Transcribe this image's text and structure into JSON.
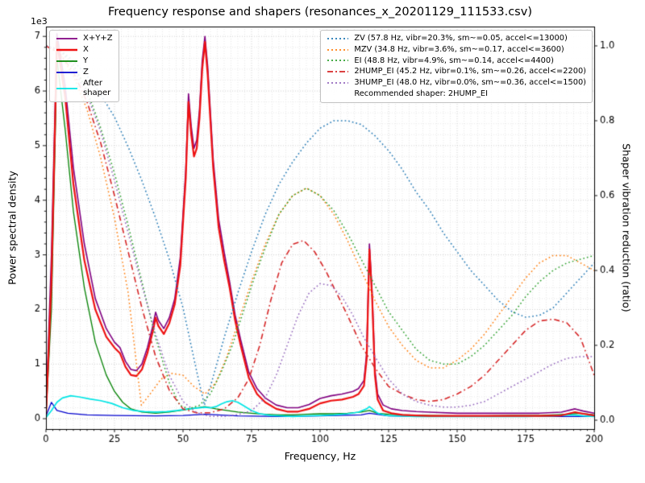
{
  "chart_data": {
    "type": "line",
    "title": "Frequency response and shapers (resonances_x_20201129_111533.csv)",
    "xlabel": "Frequency, Hz",
    "ylabel_left": "Power spectral density",
    "ylabel_right": "Shaper vibration reduction (ratio)",
    "offset_label": "1e3",
    "left_units": "1e3",
    "xlim": [
      0,
      200
    ],
    "ylim_left": [
      -0.19,
      7.18
    ],
    "ylim_right": [
      -0.0237,
      1.0516
    ],
    "x_ticks": [
      0,
      25,
      50,
      75,
      100,
      125,
      150,
      175,
      200
    ],
    "left_ticks": [
      0,
      1,
      2,
      3,
      4,
      5,
      6,
      7
    ],
    "right_ticks": [
      0.0,
      0.2,
      0.4,
      0.6,
      0.8,
      1.0
    ],
    "x_minor_step": 2.5,
    "y_minor_step": 0.2,
    "grid": true,
    "legend_note": "Recommended shaper: 2HUMP_EI",
    "psd_series": [
      {
        "name": "xyz",
        "label": "X+Y+Z",
        "color": "#800080",
        "style": "solid",
        "width": 1.6,
        "x": [
          0,
          2,
          4,
          7,
          10,
          14,
          18,
          22,
          25,
          27,
          29,
          31,
          33,
          35,
          37,
          39,
          40,
          41,
          43,
          45,
          47,
          49,
          51,
          52,
          53,
          54,
          55,
          56,
          57,
          58,
          59,
          61,
          63,
          65,
          67,
          69,
          71,
          74,
          77,
          80,
          84,
          88,
          92,
          96,
          100,
          104,
          108,
          112,
          114,
          116,
          117,
          118,
          119,
          120,
          121,
          123,
          126,
          130,
          135,
          140,
          150,
          160,
          170,
          180,
          188,
          193,
          196,
          200
        ],
        "y": [
          0.1,
          3.0,
          7.05,
          6.1,
          4.6,
          3.2,
          2.2,
          1.65,
          1.4,
          1.3,
          1.05,
          0.9,
          0.88,
          1.0,
          1.3,
          1.7,
          1.95,
          1.8,
          1.65,
          1.85,
          2.2,
          2.95,
          4.55,
          5.95,
          5.35,
          4.95,
          5.1,
          5.65,
          6.55,
          7.0,
          6.45,
          4.75,
          3.65,
          3.05,
          2.5,
          1.9,
          1.45,
          0.85,
          0.55,
          0.38,
          0.25,
          0.2,
          0.2,
          0.26,
          0.37,
          0.42,
          0.45,
          0.5,
          0.55,
          0.7,
          1.2,
          3.2,
          2.3,
          0.9,
          0.45,
          0.25,
          0.18,
          0.15,
          0.13,
          0.12,
          0.1,
          0.1,
          0.1,
          0.1,
          0.12,
          0.18,
          0.14,
          0.1
        ]
      },
      {
        "name": "x",
        "label": "X",
        "color": "#ee1111",
        "style": "solid",
        "width": 2.2,
        "x": [
          0,
          2,
          4,
          7,
          10,
          14,
          18,
          22,
          25,
          27,
          29,
          31,
          33,
          35,
          37,
          39,
          40,
          41,
          43,
          45,
          47,
          49,
          51,
          52,
          53,
          54,
          55,
          56,
          57,
          58,
          59,
          61,
          63,
          65,
          67,
          69,
          71,
          74,
          77,
          80,
          84,
          88,
          92,
          96,
          100,
          104,
          108,
          112,
          114,
          116,
          117,
          118,
          119,
          120,
          121,
          123,
          126,
          130,
          135,
          140,
          150,
          160,
          170,
          180,
          188,
          193,
          196,
          200
        ],
        "y": [
          0.05,
          2.5,
          6.9,
          5.9,
          4.3,
          2.9,
          2.0,
          1.5,
          1.3,
          1.2,
          0.95,
          0.8,
          0.78,
          0.9,
          1.2,
          1.6,
          1.85,
          1.7,
          1.55,
          1.75,
          2.1,
          2.8,
          4.4,
          5.8,
          5.2,
          4.8,
          4.95,
          5.5,
          6.4,
          6.9,
          6.3,
          4.6,
          3.5,
          2.9,
          2.4,
          1.8,
          1.35,
          0.75,
          0.45,
          0.3,
          0.18,
          0.13,
          0.13,
          0.18,
          0.28,
          0.33,
          0.35,
          0.4,
          0.45,
          0.6,
          1.1,
          3.1,
          2.2,
          0.8,
          0.35,
          0.15,
          0.1,
          0.07,
          0.06,
          0.05,
          0.05,
          0.05,
          0.05,
          0.05,
          0.06,
          0.12,
          0.09,
          0.06
        ]
      },
      {
        "name": "y",
        "label": "Y",
        "color": "#008000",
        "style": "solid",
        "width": 1.3,
        "x": [
          0,
          2,
          4,
          7,
          10,
          14,
          18,
          22,
          25,
          28,
          31,
          35,
          40,
          45,
          50,
          55,
          58,
          62,
          66,
          70,
          75,
          80,
          85,
          90,
          95,
          100,
          105,
          110,
          115,
          118,
          121,
          125,
          130,
          140,
          150,
          160,
          170,
          180,
          190,
          195,
          200
        ],
        "y": [
          0.05,
          2.0,
          6.6,
          5.3,
          3.8,
          2.4,
          1.4,
          0.8,
          0.5,
          0.3,
          0.18,
          0.12,
          0.1,
          0.12,
          0.16,
          0.2,
          0.22,
          0.18,
          0.15,
          0.12,
          0.1,
          0.08,
          0.07,
          0.07,
          0.08,
          0.09,
          0.09,
          0.1,
          0.12,
          0.15,
          0.1,
          0.08,
          0.07,
          0.06,
          0.05,
          0.05,
          0.06,
          0.06,
          0.08,
          0.1,
          0.07
        ]
      },
      {
        "name": "z",
        "label": "Z",
        "color": "#0000cd",
        "style": "solid",
        "width": 1.3,
        "x": [
          0,
          2,
          4,
          8,
          15,
          25,
          40,
          50,
          58,
          70,
          85,
          100,
          115,
          118,
          125,
          140,
          160,
          180,
          200
        ],
        "y": [
          0.05,
          0.3,
          0.15,
          0.1,
          0.07,
          0.06,
          0.05,
          0.06,
          0.08,
          0.05,
          0.04,
          0.05,
          0.07,
          0.1,
          0.05,
          0.04,
          0.04,
          0.04,
          0.04
        ]
      },
      {
        "name": "after-shaper",
        "label": "After\nshaper",
        "color": "#00e5e5",
        "style": "solid",
        "width": 1.7,
        "x": [
          0,
          2,
          4,
          6,
          9,
          12,
          16,
          20,
          24,
          28,
          32,
          36,
          40,
          44,
          48,
          52,
          56,
          58,
          60,
          62,
          64,
          66,
          68,
          70,
          72,
          75,
          78,
          82,
          86,
          90,
          95,
          100,
          105,
          110,
          114,
          117,
          118,
          119,
          121,
          124,
          128,
          135,
          145,
          155,
          165,
          175,
          185,
          192,
          196,
          200
        ],
        "y": [
          0.02,
          0.15,
          0.3,
          0.38,
          0.42,
          0.4,
          0.36,
          0.33,
          0.28,
          0.2,
          0.15,
          0.13,
          0.12,
          0.13,
          0.15,
          0.18,
          0.2,
          0.21,
          0.2,
          0.22,
          0.27,
          0.31,
          0.33,
          0.3,
          0.24,
          0.15,
          0.09,
          0.06,
          0.05,
          0.04,
          0.05,
          0.06,
          0.07,
          0.09,
          0.12,
          0.18,
          0.22,
          0.18,
          0.1,
          0.06,
          0.05,
          0.04,
          0.04,
          0.04,
          0.04,
          0.04,
          0.05,
          0.07,
          0.05,
          0.04
        ]
      }
    ],
    "shaper_series": [
      {
        "name": "zv",
        "label": "ZV (57.8 Hz, vibr=20.3%, sm~=0.05, accel<=13000)",
        "color": "#1f77b4",
        "style": "dotted",
        "width": 1.5,
        "x": [
          0,
          5,
          10,
          15,
          20,
          25,
          30,
          35,
          40,
          45,
          50,
          55,
          57.8,
          60,
          65,
          70,
          75,
          80,
          85,
          90,
          95,
          100,
          105,
          110,
          115,
          120,
          125,
          130,
          135,
          140,
          145,
          150,
          155,
          160,
          165,
          170,
          175,
          180,
          185,
          190,
          195,
          200
        ],
        "y": [
          1.0,
          0.99,
          0.96,
          0.92,
          0.87,
          0.81,
          0.73,
          0.64,
          0.54,
          0.43,
          0.3,
          0.13,
          0.04,
          0.09,
          0.22,
          0.34,
          0.45,
          0.55,
          0.63,
          0.69,
          0.74,
          0.78,
          0.8,
          0.8,
          0.79,
          0.76,
          0.72,
          0.67,
          0.61,
          0.56,
          0.5,
          0.45,
          0.4,
          0.36,
          0.32,
          0.29,
          0.275,
          0.28,
          0.3,
          0.34,
          0.38,
          0.42
        ]
      },
      {
        "name": "mzv",
        "label": "MZV (34.8 Hz, vibr=3.6%, sm~=0.17, accel<=3600)",
        "color": "#ff7f0e",
        "style": "dotted",
        "width": 1.5,
        "x": [
          0,
          5,
          10,
          15,
          20,
          25,
          30,
          34.8,
          38,
          42,
          46,
          50,
          54,
          58,
          62,
          66,
          70,
          75,
          80,
          85,
          90,
          95,
          100,
          105,
          110,
          115,
          120,
          125,
          130,
          135,
          140,
          145,
          150,
          155,
          160,
          165,
          170,
          175,
          180,
          185,
          190,
          195,
          200
        ],
        "y": [
          1.0,
          0.98,
          0.92,
          0.83,
          0.7,
          0.54,
          0.34,
          0.04,
          0.07,
          0.11,
          0.125,
          0.12,
          0.09,
          0.07,
          0.1,
          0.17,
          0.26,
          0.37,
          0.47,
          0.55,
          0.6,
          0.62,
          0.6,
          0.55,
          0.48,
          0.4,
          0.32,
          0.25,
          0.2,
          0.16,
          0.14,
          0.14,
          0.16,
          0.19,
          0.23,
          0.28,
          0.33,
          0.38,
          0.42,
          0.44,
          0.44,
          0.42,
          0.4
        ]
      },
      {
        "name": "ei",
        "label": "EI (48.8 Hz, vibr=4.9%, sm~=0.14, accel<=4400)",
        "color": "#2ca02c",
        "style": "dotted",
        "width": 1.5,
        "x": [
          0,
          5,
          10,
          15,
          20,
          25,
          30,
          35,
          40,
          45,
          48.8,
          52,
          56,
          60,
          64,
          68,
          72,
          76,
          80,
          85,
          90,
          95,
          100,
          105,
          110,
          115,
          120,
          125,
          130,
          135,
          140,
          145,
          150,
          155,
          160,
          165,
          170,
          175,
          180,
          185,
          190,
          195,
          200
        ],
        "y": [
          1.0,
          0.99,
          0.95,
          0.88,
          0.78,
          0.66,
          0.52,
          0.37,
          0.22,
          0.1,
          0.04,
          0.03,
          0.04,
          0.07,
          0.13,
          0.2,
          0.29,
          0.38,
          0.46,
          0.55,
          0.6,
          0.62,
          0.6,
          0.56,
          0.5,
          0.43,
          0.36,
          0.29,
          0.24,
          0.19,
          0.16,
          0.15,
          0.15,
          0.17,
          0.2,
          0.24,
          0.28,
          0.33,
          0.37,
          0.4,
          0.42,
          0.43,
          0.44
        ]
      },
      {
        "name": "2hump-ei",
        "label": "2HUMP_EI (45.2 Hz, vibr=0.1%, sm~=0.26, accel<=2200)",
        "color": "#d62728",
        "style": "dashdot",
        "width": 1.6,
        "x": [
          0,
          5,
          10,
          15,
          20,
          25,
          30,
          35,
          40,
          45,
          50,
          55,
          60,
          65,
          70,
          74,
          78,
          82,
          86,
          90,
          94,
          98,
          102,
          106,
          110,
          115,
          120,
          125,
          130,
          135,
          140,
          145,
          150,
          155,
          160,
          165,
          170,
          175,
          180,
          185,
          190,
          195,
          200
        ],
        "y": [
          1.0,
          0.98,
          0.93,
          0.85,
          0.74,
          0.6,
          0.45,
          0.3,
          0.17,
          0.08,
          0.03,
          0.02,
          0.02,
          0.03,
          0.06,
          0.11,
          0.2,
          0.32,
          0.42,
          0.47,
          0.48,
          0.45,
          0.4,
          0.34,
          0.28,
          0.2,
          0.14,
          0.09,
          0.07,
          0.055,
          0.05,
          0.055,
          0.07,
          0.09,
          0.12,
          0.16,
          0.2,
          0.24,
          0.265,
          0.27,
          0.26,
          0.22,
          0.12
        ]
      },
      {
        "name": "3hump-ei",
        "label": "3HUMP_EI (48.0 Hz, vibr=0.0%, sm~=0.36, accel<=1500)",
        "color": "#9467bd",
        "style": "dotted",
        "width": 1.5,
        "x": [
          0,
          5,
          10,
          15,
          20,
          25,
          30,
          35,
          40,
          45,
          50,
          55,
          60,
          65,
          70,
          75,
          80,
          84,
          88,
          92,
          96,
          100,
          104,
          108,
          112,
          116,
          120,
          125,
          130,
          135,
          140,
          145,
          150,
          155,
          160,
          165,
          170,
          175,
          180,
          185,
          190,
          195,
          200
        ],
        "y": [
          1.0,
          0.99,
          0.94,
          0.87,
          0.77,
          0.64,
          0.5,
          0.36,
          0.23,
          0.12,
          0.05,
          0.02,
          0.01,
          0.01,
          0.015,
          0.025,
          0.06,
          0.12,
          0.2,
          0.28,
          0.34,
          0.365,
          0.36,
          0.33,
          0.28,
          0.22,
          0.17,
          0.11,
          0.07,
          0.05,
          0.04,
          0.035,
          0.035,
          0.04,
          0.05,
          0.07,
          0.09,
          0.11,
          0.13,
          0.15,
          0.165,
          0.17,
          0.17
        ]
      }
    ]
  }
}
